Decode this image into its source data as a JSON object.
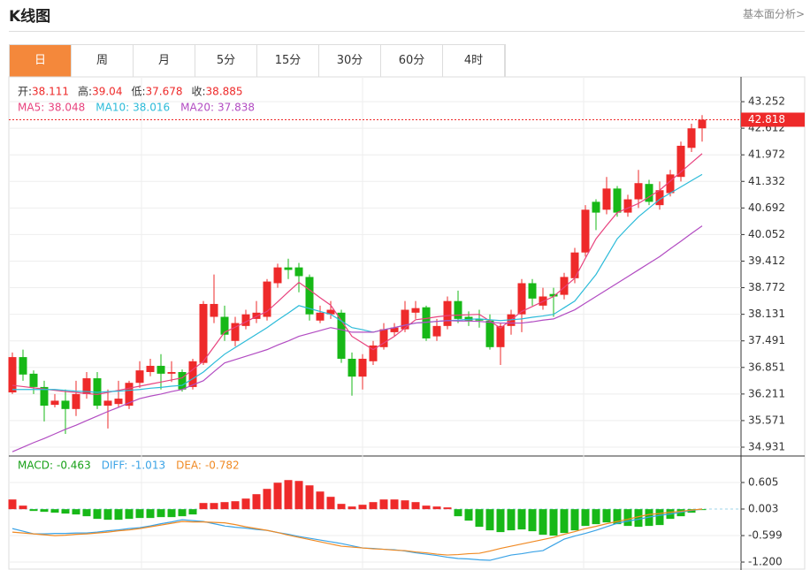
{
  "header": {
    "title": "K线图",
    "link": "基本面分析>"
  },
  "tabs": [
    "日",
    "周",
    "月",
    "5分",
    "15分",
    "30分",
    "60分",
    "4时"
  ],
  "active_tab": 0,
  "chart_data": [
    {
      "type": "candlestick",
      "up_color": "#ee2a2a",
      "down_color": "#17b817",
      "info": [
        {
          "label": "开:",
          "value": 38.111
        },
        {
          "label": "高:",
          "value": 39.04
        },
        {
          "label": "低:",
          "value": 37.678
        },
        {
          "label": "收:",
          "value": 38.885
        }
      ],
      "current_price": 42.818,
      "ylim": [
        34.718,
        43.828
      ],
      "yticks": [
        43.252,
        42.612,
        41.972,
        41.332,
        40.692,
        40.052,
        39.412,
        38.772,
        38.131,
        37.491,
        36.851,
        36.211,
        35.571,
        34.931
      ],
      "grid": true,
      "open": [
        36.25,
        37.1,
        36.7,
        36.38,
        35.95,
        36.05,
        35.85,
        36.21,
        36.59,
        35.93,
        35.97,
        35.93,
        36.48,
        36.74,
        36.89,
        36.7,
        36.74,
        36.38,
        36.96,
        38.07,
        38.07,
        37.49,
        37.85,
        38.02,
        38.07,
        38.88,
        39.26,
        39.26,
        39.03,
        37.98,
        38.13,
        38.17,
        37.06,
        36.63,
        37.0,
        37.34,
        37.7,
        37.77,
        38.17,
        38.3,
        37.6,
        37.85,
        38.45,
        38.07,
        38.02,
        37.98,
        37.34,
        37.85,
        38.13,
        38.88,
        38.34,
        38.62,
        38.6,
        39.0,
        39.62,
        40.84,
        40.65,
        41.16,
        40.58,
        40.9,
        41.27,
        40.76,
        41.05,
        41.44,
        42.14,
        42.61
      ],
      "high": [
        37.21,
        37.28,
        36.78,
        36.53,
        36.21,
        36.32,
        36.53,
        36.74,
        36.74,
        36.32,
        36.53,
        36.53,
        37.0,
        37.06,
        37.17,
        37.0,
        36.8,
        37.06,
        38.45,
        39.09,
        38.34,
        38.07,
        38.24,
        38.45,
        38.98,
        39.35,
        39.47,
        39.37,
        39.09,
        38.34,
        38.45,
        38.24,
        37.21,
        37.17,
        37.49,
        37.92,
        37.92,
        38.45,
        38.45,
        38.34,
        38.02,
        38.56,
        38.7,
        38.2,
        38.24,
        38.13,
        37.92,
        38.24,
        38.98,
        38.98,
        38.77,
        38.77,
        39.13,
        39.73,
        40.76,
        40.9,
        41.44,
        41.22,
        41.01,
        41.61,
        41.37,
        41.33,
        41.61,
        42.29,
        42.72,
        42.93
      ],
      "low": [
        36.21,
        36.53,
        36.21,
        35.55,
        35.89,
        35.25,
        35.68,
        36.1,
        35.85,
        35.38,
        35.89,
        35.85,
        36.36,
        36.64,
        36.32,
        36.5,
        36.27,
        36.32,
        36.91,
        37.92,
        37.49,
        37.36,
        37.77,
        37.92,
        37.98,
        38.77,
        38.98,
        38.66,
        37.98,
        37.92,
        38.02,
        36.96,
        36.17,
        36.32,
        36.91,
        37.28,
        37.6,
        37.7,
        38.02,
        37.49,
        37.49,
        37.77,
        37.92,
        37.85,
        37.81,
        37.28,
        36.91,
        37.64,
        37.7,
        38.34,
        38.24,
        38.07,
        38.49,
        38.88,
        39.52,
        40.16,
        40.54,
        40.48,
        40.48,
        40.69,
        40.76,
        40.65,
        40.97,
        41.33,
        42.04,
        42.29
      ],
      "close": [
        37.1,
        36.68,
        36.38,
        35.93,
        36.05,
        35.85,
        36.21,
        36.59,
        35.93,
        36.05,
        36.1,
        36.48,
        36.78,
        36.89,
        36.7,
        36.74,
        36.32,
        37.0,
        38.38,
        38.38,
        37.64,
        37.92,
        38.13,
        38.17,
        38.92,
        39.26,
        39.2,
        39.05,
        38.13,
        38.17,
        38.24,
        37.06,
        36.63,
        37.06,
        37.38,
        37.77,
        37.81,
        38.24,
        38.28,
        37.55,
        37.85,
        38.45,
        38.02,
        37.98,
        37.98,
        37.34,
        37.85,
        38.13,
        38.88,
        38.51,
        38.56,
        38.56,
        39.03,
        39.62,
        40.65,
        40.58,
        41.16,
        40.58,
        40.9,
        41.29,
        40.84,
        41.12,
        41.5,
        42.19,
        42.61,
        42.818
      ],
      "series": [
        {
          "name": "MA5:",
          "legend_value": 38.048,
          "color": "#e8437e",
          "values": [
            36.42,
            36.39,
            36.36,
            36.33,
            36.3,
            36.27,
            36.25,
            36.22,
            36.2,
            36.25,
            36.3,
            36.35,
            36.4,
            36.45,
            36.5,
            36.55,
            36.6,
            36.8,
            37.0,
            37.35,
            37.7,
            37.82,
            37.95,
            38.08,
            38.2,
            38.43,
            38.67,
            38.9,
            38.72,
            38.53,
            38.35,
            37.98,
            37.6,
            37.44,
            37.28,
            37.44,
            37.6,
            37.8,
            38.0,
            38.03,
            38.07,
            38.1,
            38.11,
            38.12,
            38.13,
            37.97,
            37.8,
            38.0,
            38.2,
            38.32,
            38.44,
            38.56,
            38.78,
            39.0,
            39.48,
            39.95,
            40.27,
            40.58,
            40.69,
            40.8,
            40.96,
            41.12,
            41.34,
            41.56,
            41.78,
            42.0
          ]
        },
        {
          "name": "MA10:",
          "legend_value": 38.016,
          "color": "#2cbbd9",
          "values": [
            36.32,
            36.32,
            36.32,
            36.32,
            36.32,
            36.3,
            36.28,
            36.27,
            36.25,
            36.27,
            36.28,
            36.3,
            36.32,
            36.35,
            36.37,
            36.4,
            36.42,
            36.58,
            36.74,
            36.96,
            37.17,
            37.33,
            37.49,
            37.65,
            37.81,
            37.99,
            38.16,
            38.34,
            38.27,
            38.2,
            38.13,
            37.97,
            37.81,
            37.76,
            37.7,
            37.76,
            37.81,
            37.87,
            37.92,
            37.94,
            37.96,
            37.98,
            37.99,
            38.01,
            38.02,
            38.0,
            37.98,
            38.0,
            38.02,
            38.06,
            38.09,
            38.13,
            38.29,
            38.45,
            38.77,
            39.09,
            39.52,
            39.95,
            40.22,
            40.48,
            40.69,
            40.9,
            41.05,
            41.2,
            41.35,
            41.5
          ]
        },
        {
          "name": "MA20:",
          "legend_value": 37.838,
          "color": "#b24cc2",
          "values": [
            34.82,
            34.93,
            35.04,
            35.14,
            35.25,
            35.36,
            35.46,
            35.57,
            35.68,
            35.79,
            35.89,
            36.0,
            36.1,
            36.16,
            36.21,
            36.27,
            36.32,
            36.43,
            36.53,
            36.75,
            36.96,
            37.04,
            37.12,
            37.2,
            37.28,
            37.39,
            37.49,
            37.6,
            37.67,
            37.74,
            37.81,
            37.76,
            37.7,
            37.7,
            37.7,
            37.76,
            37.81,
            37.87,
            37.92,
            37.94,
            37.96,
            37.98,
            37.97,
            37.97,
            37.96,
            37.94,
            37.92,
            37.92,
            37.92,
            37.95,
            37.99,
            38.02,
            38.13,
            38.24,
            38.4,
            38.56,
            38.72,
            38.88,
            39.04,
            39.2,
            39.36,
            39.52,
            39.71,
            39.89,
            40.08,
            40.26
          ]
        }
      ]
    },
    {
      "type": "macd",
      "label": "MACD:",
      "legend_value": -0.463,
      "up_color": "#ee2a2a",
      "down_color": "#17b817",
      "legend_color": "#17a017",
      "ylim": [
        -1.38,
        1.186
      ],
      "yticks": [
        0.605,
        0.003,
        -0.599,
        {
          "value": -1.2,
          "label": "-1.200"
        }
      ],
      "histogram": [
        0.22,
        0.08,
        -0.04,
        -0.06,
        -0.08,
        -0.1,
        -0.12,
        -0.16,
        -0.22,
        -0.24,
        -0.24,
        -0.22,
        -0.2,
        -0.2,
        -0.18,
        -0.18,
        -0.16,
        -0.12,
        0.14,
        0.14,
        0.16,
        0.18,
        0.24,
        0.34,
        0.46,
        0.6,
        0.66,
        0.64,
        0.54,
        0.4,
        0.28,
        0.12,
        0.06,
        0.1,
        0.16,
        0.22,
        0.22,
        0.2,
        0.16,
        0.08,
        0.06,
        0.04,
        -0.16,
        -0.26,
        -0.4,
        -0.48,
        -0.52,
        -0.48,
        -0.46,
        -0.5,
        -0.58,
        -0.6,
        -0.54,
        -0.48,
        -0.38,
        -0.34,
        -0.3,
        -0.34,
        -0.38,
        -0.4,
        -0.38,
        -0.36,
        -0.22,
        -0.16,
        -0.08,
        -0.02
      ],
      "series": [
        {
          "name": "DIFF:",
          "legend_value": -1.013,
          "color": "#3ba3e6",
          "values": [
            -0.44,
            -0.5,
            -0.56,
            -0.56,
            -0.55,
            -0.55,
            -0.54,
            -0.54,
            -0.52,
            -0.49,
            -0.47,
            -0.44,
            -0.42,
            -0.38,
            -0.33,
            -0.29,
            -0.24,
            -0.26,
            -0.28,
            -0.33,
            -0.38,
            -0.41,
            -0.43,
            -0.46,
            -0.48,
            -0.53,
            -0.57,
            -0.62,
            -0.66,
            -0.7,
            -0.74,
            -0.78,
            -0.83,
            -0.88,
            -0.89,
            -0.91,
            -0.92,
            -0.95,
            -0.99,
            -1.02,
            -1.05,
            -1.09,
            -1.12,
            -1.13,
            -1.15,
            -1.16,
            -1.1,
            -1.04,
            -1.01,
            -0.97,
            -0.94,
            -0.81,
            -0.68,
            -0.61,
            -0.55,
            -0.48,
            -0.4,
            -0.32,
            -0.27,
            -0.23,
            -0.18,
            -0.14,
            -0.11,
            -0.07,
            -0.03,
            0.003
          ]
        },
        {
          "name": "DEA:",
          "legend_value": -0.782,
          "color": "#f08a24",
          "values": [
            -0.52,
            -0.54,
            -0.56,
            -0.58,
            -0.6,
            -0.59,
            -0.57,
            -0.56,
            -0.54,
            -0.52,
            -0.49,
            -0.47,
            -0.44,
            -0.4,
            -0.36,
            -0.32,
            -0.28,
            -0.29,
            -0.29,
            -0.3,
            -0.31,
            -0.35,
            -0.4,
            -0.44,
            -0.48,
            -0.53,
            -0.59,
            -0.64,
            -0.69,
            -0.74,
            -0.79,
            -0.84,
            -0.86,
            -0.88,
            -0.9,
            -0.91,
            -0.93,
            -0.94,
            -0.97,
            -0.99,
            -1.02,
            -1.04,
            -1.03,
            -1.01,
            -1.0,
            -0.95,
            -0.89,
            -0.84,
            -0.79,
            -0.74,
            -0.69,
            -0.64,
            -0.57,
            -0.51,
            -0.44,
            -0.39,
            -0.33,
            -0.28,
            -0.23,
            -0.17,
            -0.12,
            -0.1,
            -0.07,
            -0.05,
            -0.02,
            0.003
          ]
        }
      ]
    }
  ]
}
